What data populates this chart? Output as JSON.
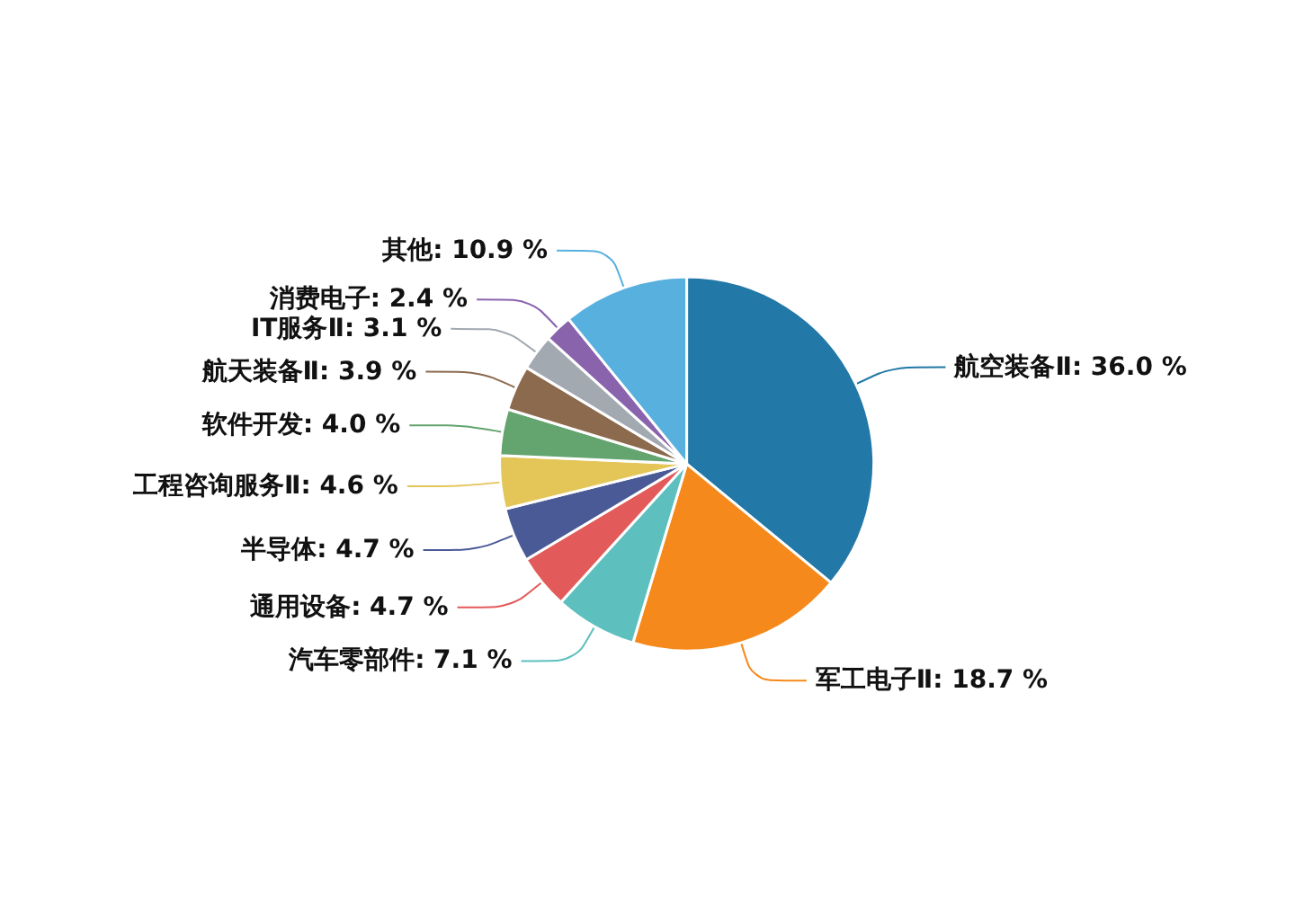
{
  "chart_data": {
    "type": "pie",
    "categories": [
      "航空装备Ⅱ",
      "军工电子Ⅱ",
      "汽车零部件",
      "通用设备",
      "半导体",
      "工程咨询服务Ⅱ",
      "软件开发",
      "航天装备Ⅱ",
      "IT服务Ⅱ",
      "消费电子",
      "其他"
    ],
    "values": [
      36.0,
      18.7,
      7.1,
      4.7,
      4.7,
      4.6,
      4.0,
      3.9,
      3.1,
      2.4,
      10.9
    ],
    "value_labels": [
      "36.0 %",
      "18.7 %",
      "7.1 %",
      "4.7 %",
      "4.7 %",
      "4.6 %",
      "4.0 %",
      "3.9 %",
      "3.1 %",
      "2.4 %",
      "10.9 %"
    ],
    "colors": [
      "#2278a6",
      "#f5891b",
      "#5dbfbe",
      "#e35a5a",
      "#4a5a96",
      "#e4c558",
      "#63a46f",
      "#8b6a4e",
      "#a2a9b1",
      "#8a63ad",
      "#58b0de"
    ],
    "legend": false
  }
}
